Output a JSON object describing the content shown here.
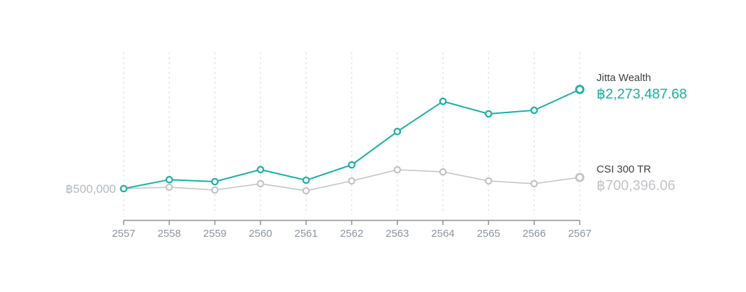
{
  "chart_data": {
    "type": "line",
    "title": "",
    "xlabel": "",
    "ylabel": "",
    "x": [
      "2557",
      "2558",
      "2559",
      "2560",
      "2561",
      "2562",
      "2563",
      "2564",
      "2565",
      "2566",
      "2567"
    ],
    "series": [
      {
        "name": "Jitta Wealth",
        "color": "#14b2a3",
        "final_label": "฿2,273,487.68",
        "values": [
          500000,
          660000,
          625000,
          840000,
          650000,
          925000,
          1520000,
          2060000,
          1836000,
          1900000,
          2273487.68
        ]
      },
      {
        "name": "CSI 300 TR",
        "color": "#c1c4c7",
        "final_label": "฿700,396.06",
        "values": [
          500000,
          525000,
          475000,
          587000,
          462000,
          637000,
          837000,
          800000,
          637000,
          587000,
          700396.06
        ]
      }
    ],
    "start_label": "฿500,000",
    "ylim": [
      0,
      2935000
    ],
    "grid": "vertical-dashed",
    "legend_position": "right-of-line-end",
    "colors": {
      "grid": "#e3e4e6",
      "axis": "#8d9095",
      "tick_label": "#8b95a2",
      "series_name_label": "#3d4043",
      "start_label": "#b3bac1",
      "background": "#ffffff"
    }
  }
}
